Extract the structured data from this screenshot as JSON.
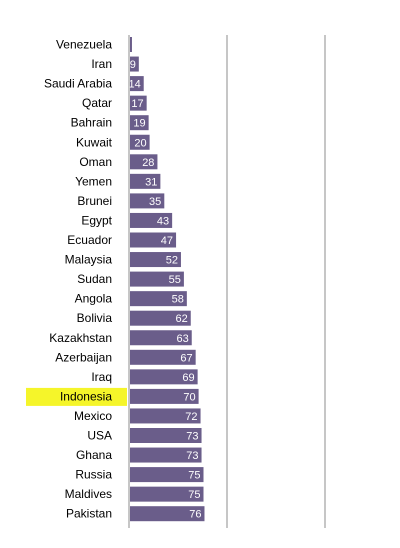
{
  "chart_data": {
    "type": "bar",
    "orientation": "horizontal",
    "categories": [
      "Venezuela",
      "Iran",
      "Saudi Arabia",
      "Qatar",
      "Bahrain",
      "Kuwait",
      "Oman",
      "Yemen",
      "Brunei",
      "Egypt",
      "Ecuador",
      "Malaysia",
      "Sudan",
      "Angola",
      "Bolivia",
      "Kazakhstan",
      "Azerbaijan",
      "Iraq",
      "Indonesia",
      "Mexico",
      "USA",
      "Ghana",
      "Russia",
      "Maldives",
      "Pakistan"
    ],
    "values": [
      2,
      9,
      14,
      17,
      19,
      20,
      28,
      31,
      35,
      43,
      47,
      52,
      55,
      58,
      62,
      63,
      67,
      69,
      70,
      72,
      73,
      73,
      75,
      75,
      76
    ],
    "value_labels": [
      "",
      "9",
      "14",
      "17",
      "19",
      "20",
      "28",
      "31",
      "35",
      "43",
      "47",
      "52",
      "55",
      "58",
      "62",
      "63",
      "67",
      "69",
      "70",
      "72",
      "73",
      "73",
      "75",
      "75",
      "76"
    ],
    "xlim": [
      0,
      200
    ],
    "gridlines_at": [
      0,
      100,
      200
    ],
    "highlighted_category": "Indonesia",
    "title": "",
    "xlabel": "",
    "ylabel": "",
    "colors": {
      "bar": "#6a5d8a",
      "highlight": "#f5f52a",
      "gridline": "#8c8c8c",
      "value_text": "#ffffff",
      "label_text": "#000000"
    }
  }
}
